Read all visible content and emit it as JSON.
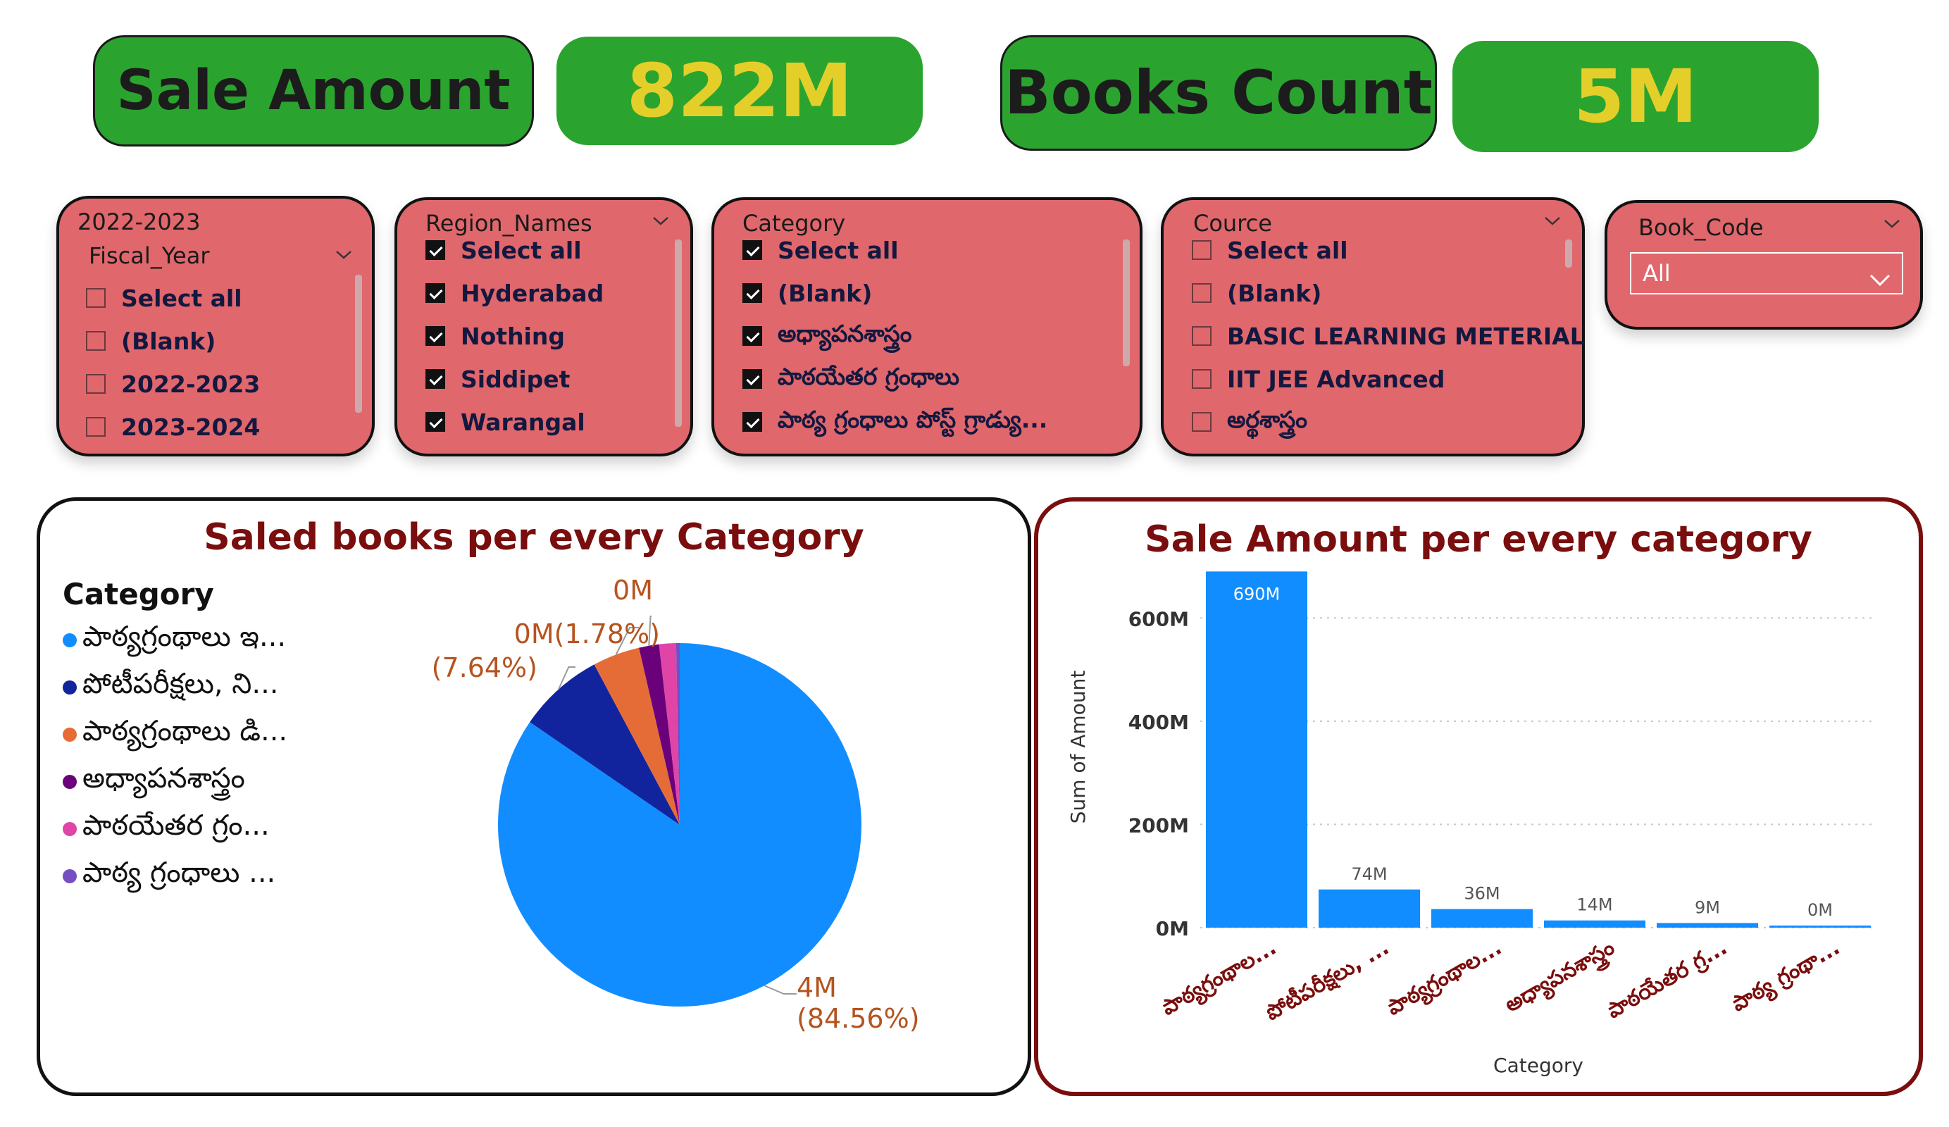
{
  "kpis": {
    "sale_amount_label": "Sale Amount",
    "sale_amount_value": "822M",
    "books_count_label": "Books Count",
    "books_count_value": "5M"
  },
  "slicers": {
    "fiscal": {
      "header": "2022-2023",
      "field": "Fiscal_Year",
      "items": [
        {
          "label": "Select all",
          "checked": false
        },
        {
          "label": "(Blank)",
          "checked": false
        },
        {
          "label": "2022-2023",
          "checked": false
        },
        {
          "label": "2023-2024",
          "checked": false
        }
      ]
    },
    "region": {
      "field": "Region_Names",
      "items": [
        {
          "label": "Select all",
          "checked": true
        },
        {
          "label": "Hyderabad",
          "checked": true
        },
        {
          "label": "Nothing",
          "checked": true
        },
        {
          "label": "Siddipet",
          "checked": true
        },
        {
          "label": "Warangal",
          "checked": true
        }
      ]
    },
    "category": {
      "field": "Category",
      "items": [
        {
          "label": "Select all",
          "checked": true
        },
        {
          "label": "(Blank)",
          "checked": true
        },
        {
          "label": "అధ్యాపనశాస్త్రం",
          "checked": true
        },
        {
          "label": "పాఠయేతర గ్రంధాలు",
          "checked": true
        },
        {
          "label": "పాఠ్య గ్రంధాలు పోస్ట్ గ్రాడ్యు...",
          "checked": true
        }
      ]
    },
    "cource": {
      "field": "Cource",
      "items": [
        {
          "label": "Select all",
          "checked": false
        },
        {
          "label": "(Blank)",
          "checked": false
        },
        {
          "label": "BASIC LEARNING METERIAL",
          "checked": false
        },
        {
          "label": "IIT JEE Advanced",
          "checked": false
        },
        {
          "label": "అర్థశాస్త్రం",
          "checked": false
        }
      ]
    },
    "book_code": {
      "field": "Book_Code",
      "selected": "All"
    }
  },
  "chart_data": [
    {
      "type": "pie",
      "title": "Saled books per every Category",
      "legend_title": "Category",
      "legend_position": "left",
      "categories": [
        "పాఠ్యగ్రంథాలు ఇ...",
        "పోటీపరీక్షలు, ని...",
        "పాఠ్యగ్రంథాలు డి...",
        "అధ్యాపనశాస్త్రం",
        "పాఠయేతర గ్రం...",
        "పాఠ్య గ్రంధాలు ..."
      ],
      "values": [
        84.56,
        7.64,
        4.2,
        1.78,
        1.5,
        0.32
      ],
      "colors": [
        "#118dff",
        "#12239e",
        "#e66c37",
        "#6b007b",
        "#e044a7",
        "#744ec2"
      ],
      "data_labels": [
        {
          "label": "4M",
          "sub": "(84.56%)"
        },
        {
          "label": "(7.64%)"
        },
        {
          "label": "0M(1.78%)"
        },
        {
          "label": "0M"
        }
      ]
    },
    {
      "type": "bar",
      "title": "Sale Amount per every category",
      "xlabel": "Category",
      "ylabel": "Sum of Amount",
      "ylim": [
        0,
        700
      ],
      "y_ticks": [
        "0M",
        "200M",
        "400M",
        "600M"
      ],
      "y_tick_values": [
        0,
        200,
        400,
        600
      ],
      "categories": [
        "పాఠ్యగ్రంథాల...",
        "పోటీపరీక్షలు, ...",
        "పాఠ్యగ్రంథాల...",
        "అధ్యాపనశాస్త్రం",
        "పాఠయేతర గ్ర...",
        "పాఠ్య గ్రంథా..."
      ],
      "values": [
        690,
        74,
        36,
        14,
        9,
        0.5
      ],
      "value_labels": [
        "690M",
        "74M",
        "36M",
        "14M",
        "9M",
        "0M"
      ],
      "bar_color": "#118dff",
      "grid": true
    }
  ]
}
